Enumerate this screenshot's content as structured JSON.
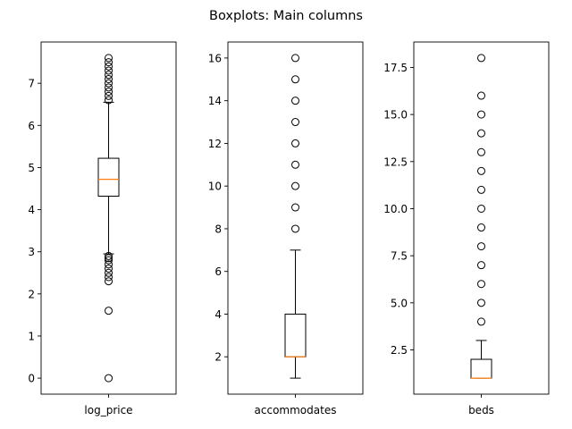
{
  "figure": {
    "title": "Boxplots: Main columns"
  },
  "chart_data": [
    {
      "type": "box",
      "xlabel": "log_price",
      "ylim": [
        -0.38,
        7.98
      ],
      "yticks": [
        0,
        1,
        2,
        3,
        4,
        5,
        6,
        7
      ],
      "ytick_labels": [
        "0",
        "1",
        "2",
        "3",
        "4",
        "5",
        "6",
        "7"
      ],
      "box": {
        "whisker_low": 2.95,
        "q1": 4.32,
        "median": 4.72,
        "q3": 5.22,
        "whisker_high": 6.55
      },
      "outliers": [
        0.0,
        1.6,
        2.3,
        2.4,
        2.5,
        2.6,
        2.7,
        2.8,
        2.85,
        2.9,
        6.6,
        6.7,
        6.8,
        6.9,
        7.0,
        7.1,
        7.2,
        7.3,
        7.4,
        7.5,
        7.6
      ]
    },
    {
      "type": "box",
      "xlabel": "accommodates",
      "ylim": [
        0.25,
        16.75
      ],
      "yticks": [
        2,
        4,
        6,
        8,
        10,
        12,
        14,
        16
      ],
      "ytick_labels": [
        "2",
        "4",
        "6",
        "8",
        "10",
        "12",
        "14",
        "16"
      ],
      "box": {
        "whisker_low": 1,
        "q1": 2,
        "median": 2,
        "q3": 4,
        "whisker_high": 7
      },
      "outliers": [
        8,
        9,
        10,
        11,
        12,
        13,
        14,
        15,
        16
      ]
    },
    {
      "type": "box",
      "xlabel": "beds",
      "ylim": [
        0.15,
        18.85
      ],
      "yticks": [
        2.5,
        5.0,
        7.5,
        10.0,
        12.5,
        15.0,
        17.5
      ],
      "ytick_labels": [
        "2.5",
        "5.0",
        "7.5",
        "10.0",
        "12.5",
        "15.0",
        "17.5"
      ],
      "box": {
        "whisker_low": 1,
        "q1": 1,
        "median": 1,
        "q3": 2,
        "whisker_high": 3
      },
      "outliers": [
        4,
        5,
        6,
        7,
        8,
        9,
        10,
        11,
        12,
        13,
        14,
        15,
        16,
        18
      ]
    }
  ]
}
